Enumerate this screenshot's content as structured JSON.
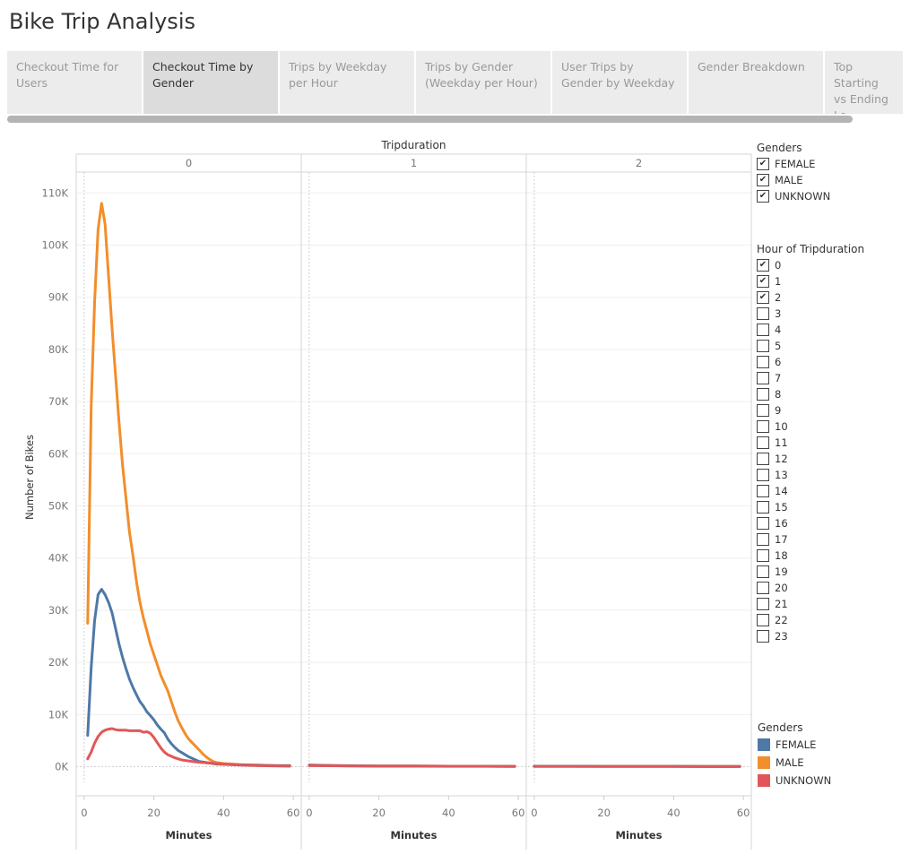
{
  "page": {
    "title": "Bike Trip Analysis"
  },
  "tabs": [
    {
      "label": "Checkout Time for Users",
      "active": false
    },
    {
      "label": "Checkout Time by Gender",
      "active": true
    },
    {
      "label": "Trips by Weekday per Hour",
      "active": false
    },
    {
      "label": "Trips by Gender (Weekday per Hour)",
      "active": false
    },
    {
      "label": "User Trips by Gender by Weekday",
      "active": false
    },
    {
      "label": "Gender Breakdown",
      "active": false
    },
    {
      "label": "Top Starting vs Ending Lo...",
      "active": false
    }
  ],
  "filters": {
    "genders": {
      "title": "Genders",
      "items": [
        {
          "label": "FEMALE",
          "checked": true
        },
        {
          "label": "MALE",
          "checked": true
        },
        {
          "label": "UNKNOWN",
          "checked": true
        }
      ]
    },
    "hour": {
      "title": "Hour of Tripduration",
      "items": [
        {
          "label": "0",
          "checked": true
        },
        {
          "label": "1",
          "checked": true
        },
        {
          "label": "2",
          "checked": true
        },
        {
          "label": "3",
          "checked": false
        },
        {
          "label": "4",
          "checked": false
        },
        {
          "label": "5",
          "checked": false
        },
        {
          "label": "6",
          "checked": false
        },
        {
          "label": "7",
          "checked": false
        },
        {
          "label": "8",
          "checked": false
        },
        {
          "label": "9",
          "checked": false
        },
        {
          "label": "10",
          "checked": false
        },
        {
          "label": "11",
          "checked": false
        },
        {
          "label": "12",
          "checked": false
        },
        {
          "label": "13",
          "checked": false
        },
        {
          "label": "14",
          "checked": false
        },
        {
          "label": "15",
          "checked": false
        },
        {
          "label": "16",
          "checked": false
        },
        {
          "label": "17",
          "checked": false
        },
        {
          "label": "18",
          "checked": false
        },
        {
          "label": "19",
          "checked": false
        },
        {
          "label": "20",
          "checked": false
        },
        {
          "label": "21",
          "checked": false
        },
        {
          "label": "22",
          "checked": false
        },
        {
          "label": "23",
          "checked": false
        }
      ]
    }
  },
  "color_legend": {
    "title": "Genders",
    "items": [
      {
        "label": "FEMALE",
        "color": "#4e79a7"
      },
      {
        "label": "MALE",
        "color": "#f28e2b"
      },
      {
        "label": "UNKNOWN",
        "color": "#e15759"
      }
    ]
  },
  "chart_data": {
    "type": "line",
    "panel_header": "Tripduration",
    "panels": [
      "0",
      "1",
      "2"
    ],
    "xlabel": "Minutes",
    "ylabel": "Number of Bikes",
    "xlim": [
      -1,
      61
    ],
    "ylim": [
      -3000,
      114000
    ],
    "xticks": [
      0,
      20,
      40,
      60
    ],
    "xtick_labels": [
      "0",
      "20",
      "40",
      "60"
    ],
    "yticks": [
      0,
      10000,
      20000,
      30000,
      40000,
      50000,
      60000,
      70000,
      80000,
      90000,
      100000,
      110000
    ],
    "ytick_labels": [
      "0K",
      "10K",
      "20K",
      "30K",
      "40K",
      "50K",
      "60K",
      "70K",
      "80K",
      "90K",
      "100K",
      "110K"
    ],
    "grid": true,
    "series": [
      {
        "name": "MALE",
        "color": "#f28e2b",
        "data": [
          [
            [
              1,
              27500
            ],
            [
              2,
              69000
            ],
            [
              3,
              89000
            ],
            [
              4,
              103000
            ],
            [
              5,
              108000
            ],
            [
              6,
              104000
            ],
            [
              7,
              94000
            ],
            [
              8,
              84000
            ],
            [
              9,
              75000
            ],
            [
              10,
              66000
            ],
            [
              11,
              58000
            ],
            [
              12,
              51500
            ],
            [
              13,
              45000
            ],
            [
              14,
              40500
            ],
            [
              15,
              35500
            ],
            [
              16,
              31500
            ],
            [
              17,
              28500
            ],
            [
              18,
              26000
            ],
            [
              19,
              23500
            ],
            [
              20,
              21500
            ],
            [
              21,
              19500
            ],
            [
              22,
              17500
            ],
            [
              23,
              16000
            ],
            [
              24,
              14500
            ],
            [
              25,
              12500
            ],
            [
              26,
              10500
            ],
            [
              27,
              8800
            ],
            [
              28,
              7500
            ],
            [
              29,
              6300
            ],
            [
              30,
              5300
            ],
            [
              31,
              4600
            ],
            [
              32,
              3900
            ],
            [
              33,
              3200
            ],
            [
              34,
              2500
            ],
            [
              35,
              1900
            ],
            [
              36,
              1400
            ],
            [
              37,
              1000
            ],
            [
              38,
              800
            ],
            [
              40,
              600
            ],
            [
              45,
              400
            ],
            [
              50,
              300
            ],
            [
              55,
              200
            ],
            [
              59,
              200
            ]
          ],
          [
            [
              0,
              300
            ],
            [
              5,
              250
            ],
            [
              10,
              180
            ],
            [
              20,
              140
            ],
            [
              30,
              120
            ],
            [
              40,
              100
            ],
            [
              50,
              90
            ],
            [
              59,
              80
            ]
          ],
          [
            [
              0,
              100
            ],
            [
              10,
              90
            ],
            [
              20,
              80
            ],
            [
              30,
              80
            ],
            [
              40,
              70
            ],
            [
              50,
              60
            ],
            [
              59,
              60
            ]
          ]
        ]
      },
      {
        "name": "FEMALE",
        "color": "#4e79a7",
        "data": [
          [
            [
              1,
              6000
            ],
            [
              2,
              19000
            ],
            [
              3,
              28000
            ],
            [
              4,
              33000
            ],
            [
              5,
              34000
            ],
            [
              6,
              33000
            ],
            [
              7,
              31500
            ],
            [
              8,
              29500
            ],
            [
              9,
              26500
            ],
            [
              10,
              23500
            ],
            [
              11,
              21000
            ],
            [
              12,
              18800
            ],
            [
              13,
              16800
            ],
            [
              14,
              15200
            ],
            [
              15,
              13800
            ],
            [
              16,
              12500
            ],
            [
              17,
              11600
            ],
            [
              18,
              10500
            ],
            [
              19,
              9800
            ],
            [
              20,
              9000
            ],
            [
              21,
              8000
            ],
            [
              22,
              7200
            ],
            [
              23,
              6500
            ],
            [
              24,
              5300
            ],
            [
              25,
              4400
            ],
            [
              26,
              3700
            ],
            [
              27,
              3100
            ],
            [
              28,
              2700
            ],
            [
              29,
              2300
            ],
            [
              30,
              1900
            ],
            [
              31,
              1600
            ],
            [
              32,
              1300
            ],
            [
              33,
              1000
            ],
            [
              35,
              800
            ],
            [
              38,
              500
            ],
            [
              42,
              400
            ],
            [
              48,
              300
            ],
            [
              55,
              200
            ],
            [
              59,
              200
            ]
          ],
          [
            [
              0,
              300
            ],
            [
              5,
              250
            ],
            [
              10,
              200
            ],
            [
              20,
              150
            ],
            [
              30,
              120
            ],
            [
              40,
              100
            ],
            [
              50,
              90
            ],
            [
              59,
              80
            ]
          ],
          [
            [
              0,
              100
            ],
            [
              10,
              90
            ],
            [
              20,
              80
            ],
            [
              30,
              80
            ],
            [
              40,
              70
            ],
            [
              50,
              60
            ],
            [
              59,
              60
            ]
          ]
        ]
      },
      {
        "name": "UNKNOWN",
        "color": "#e15759",
        "data": [
          [
            [
              1,
              1500
            ],
            [
              2,
              2800
            ],
            [
              3,
              4500
            ],
            [
              4,
              5800
            ],
            [
              5,
              6600
            ],
            [
              6,
              7000
            ],
            [
              7,
              7200
            ],
            [
              8,
              7300
            ],
            [
              9,
              7100
            ],
            [
              10,
              7000
            ],
            [
              11,
              7000
            ],
            [
              12,
              7000
            ],
            [
              13,
              6900
            ],
            [
              14,
              6900
            ],
            [
              15,
              6900
            ],
            [
              16,
              6900
            ],
            [
              17,
              6600
            ],
            [
              18,
              6700
            ],
            [
              19,
              6400
            ],
            [
              20,
              5600
            ],
            [
              21,
              4600
            ],
            [
              22,
              3600
            ],
            [
              23,
              2800
            ],
            [
              24,
              2300
            ],
            [
              25,
              2000
            ],
            [
              26,
              1700
            ],
            [
              27,
              1500
            ],
            [
              28,
              1300
            ],
            [
              29,
              1200
            ],
            [
              30,
              1100
            ],
            [
              31,
              1000
            ],
            [
              32,
              900
            ],
            [
              34,
              800
            ],
            [
              36,
              700
            ],
            [
              40,
              500
            ],
            [
              45,
              300
            ],
            [
              50,
              200
            ],
            [
              59,
              100
            ]
          ],
          [
            [
              0,
              200
            ],
            [
              10,
              150
            ],
            [
              20,
              100
            ],
            [
              30,
              90
            ],
            [
              40,
              80
            ],
            [
              50,
              70
            ],
            [
              59,
              60
            ]
          ],
          [
            [
              0,
              50
            ],
            [
              10,
              50
            ],
            [
              20,
              40
            ],
            [
              30,
              40
            ],
            [
              40,
              40
            ],
            [
              50,
              30
            ],
            [
              59,
              30
            ]
          ]
        ]
      }
    ]
  }
}
